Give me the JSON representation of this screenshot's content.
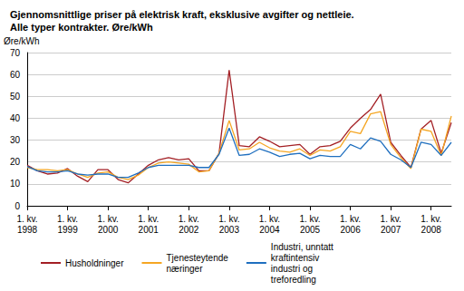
{
  "chart_data": {
    "type": "line",
    "title": "Gjennomsnittlige priser på elektrisk kraft, eksklusive avgifter og nettleie. Alle typer kontrakter. Øre/kWh",
    "y_label": "Øre/kWh",
    "categories": [
      "1. kv. 1998",
      null,
      null,
      null,
      "1. kv. 1999",
      null,
      null,
      null,
      "1. kv. 2000",
      null,
      null,
      null,
      "1. kv. 2001",
      null,
      null,
      null,
      "1. kv. 2002",
      null,
      null,
      null,
      "1. kv. 2003",
      null,
      null,
      null,
      "1. kv. 2004",
      null,
      null,
      null,
      "1. kv. 2005",
      null,
      null,
      null,
      "1. kv. 2006",
      null,
      null,
      null,
      "1. kv. 2007",
      null,
      null,
      null,
      "1. kv. 2008",
      null,
      null
    ],
    "series": [
      {
        "name": "Husholdninger",
        "color": "#a31f24",
        "values": [
          18.5,
          16,
          14.5,
          15,
          17,
          13.5,
          11,
          16.5,
          16.5,
          12,
          10.5,
          14.5,
          18.5,
          21,
          22,
          21,
          21.5,
          16,
          16,
          24,
          62,
          27.5,
          27,
          31.5,
          29.5,
          27,
          27.5,
          28,
          23.5,
          27,
          27.5,
          29.5,
          35.5,
          40,
          44,
          51,
          29,
          23,
          17.5,
          35,
          39,
          24,
          38
        ]
      },
      {
        "name": "Tjenesteytende næringer",
        "color": "#f5a623",
        "values": [
          17.5,
          16.5,
          16.5,
          16,
          16.5,
          14.5,
          13,
          15,
          15.5,
          13,
          12,
          14,
          17.5,
          19.5,
          20,
          19.5,
          19,
          15.5,
          16,
          24,
          39,
          25.5,
          26,
          29,
          26.5,
          25,
          24.5,
          26,
          23,
          25.5,
          25,
          27,
          34,
          33,
          42,
          43,
          28,
          22,
          17,
          35,
          34,
          23,
          41
        ]
      },
      {
        "name": "Industri, unntatt kraftintensiv industri og treforedling",
        "color": "#1f6fbf",
        "values": [
          18,
          16,
          15.5,
          15.5,
          16,
          14.5,
          14,
          14.5,
          14.5,
          13,
          13,
          15,
          17.5,
          18.5,
          18.5,
          18.5,
          18.5,
          17.5,
          17.5,
          23.5,
          35.5,
          23,
          23.5,
          26,
          24.5,
          22.5,
          23.5,
          24,
          21.5,
          23,
          22.5,
          22.5,
          28,
          26,
          31,
          29.5,
          23.5,
          21,
          17.5,
          29,
          28,
          23,
          29
        ]
      }
    ],
    "ylim": [
      0,
      70
    ],
    "yticks": [
      0,
      10,
      20,
      30,
      40,
      50,
      60,
      70
    ],
    "grid": true,
    "legend": "bottom"
  }
}
